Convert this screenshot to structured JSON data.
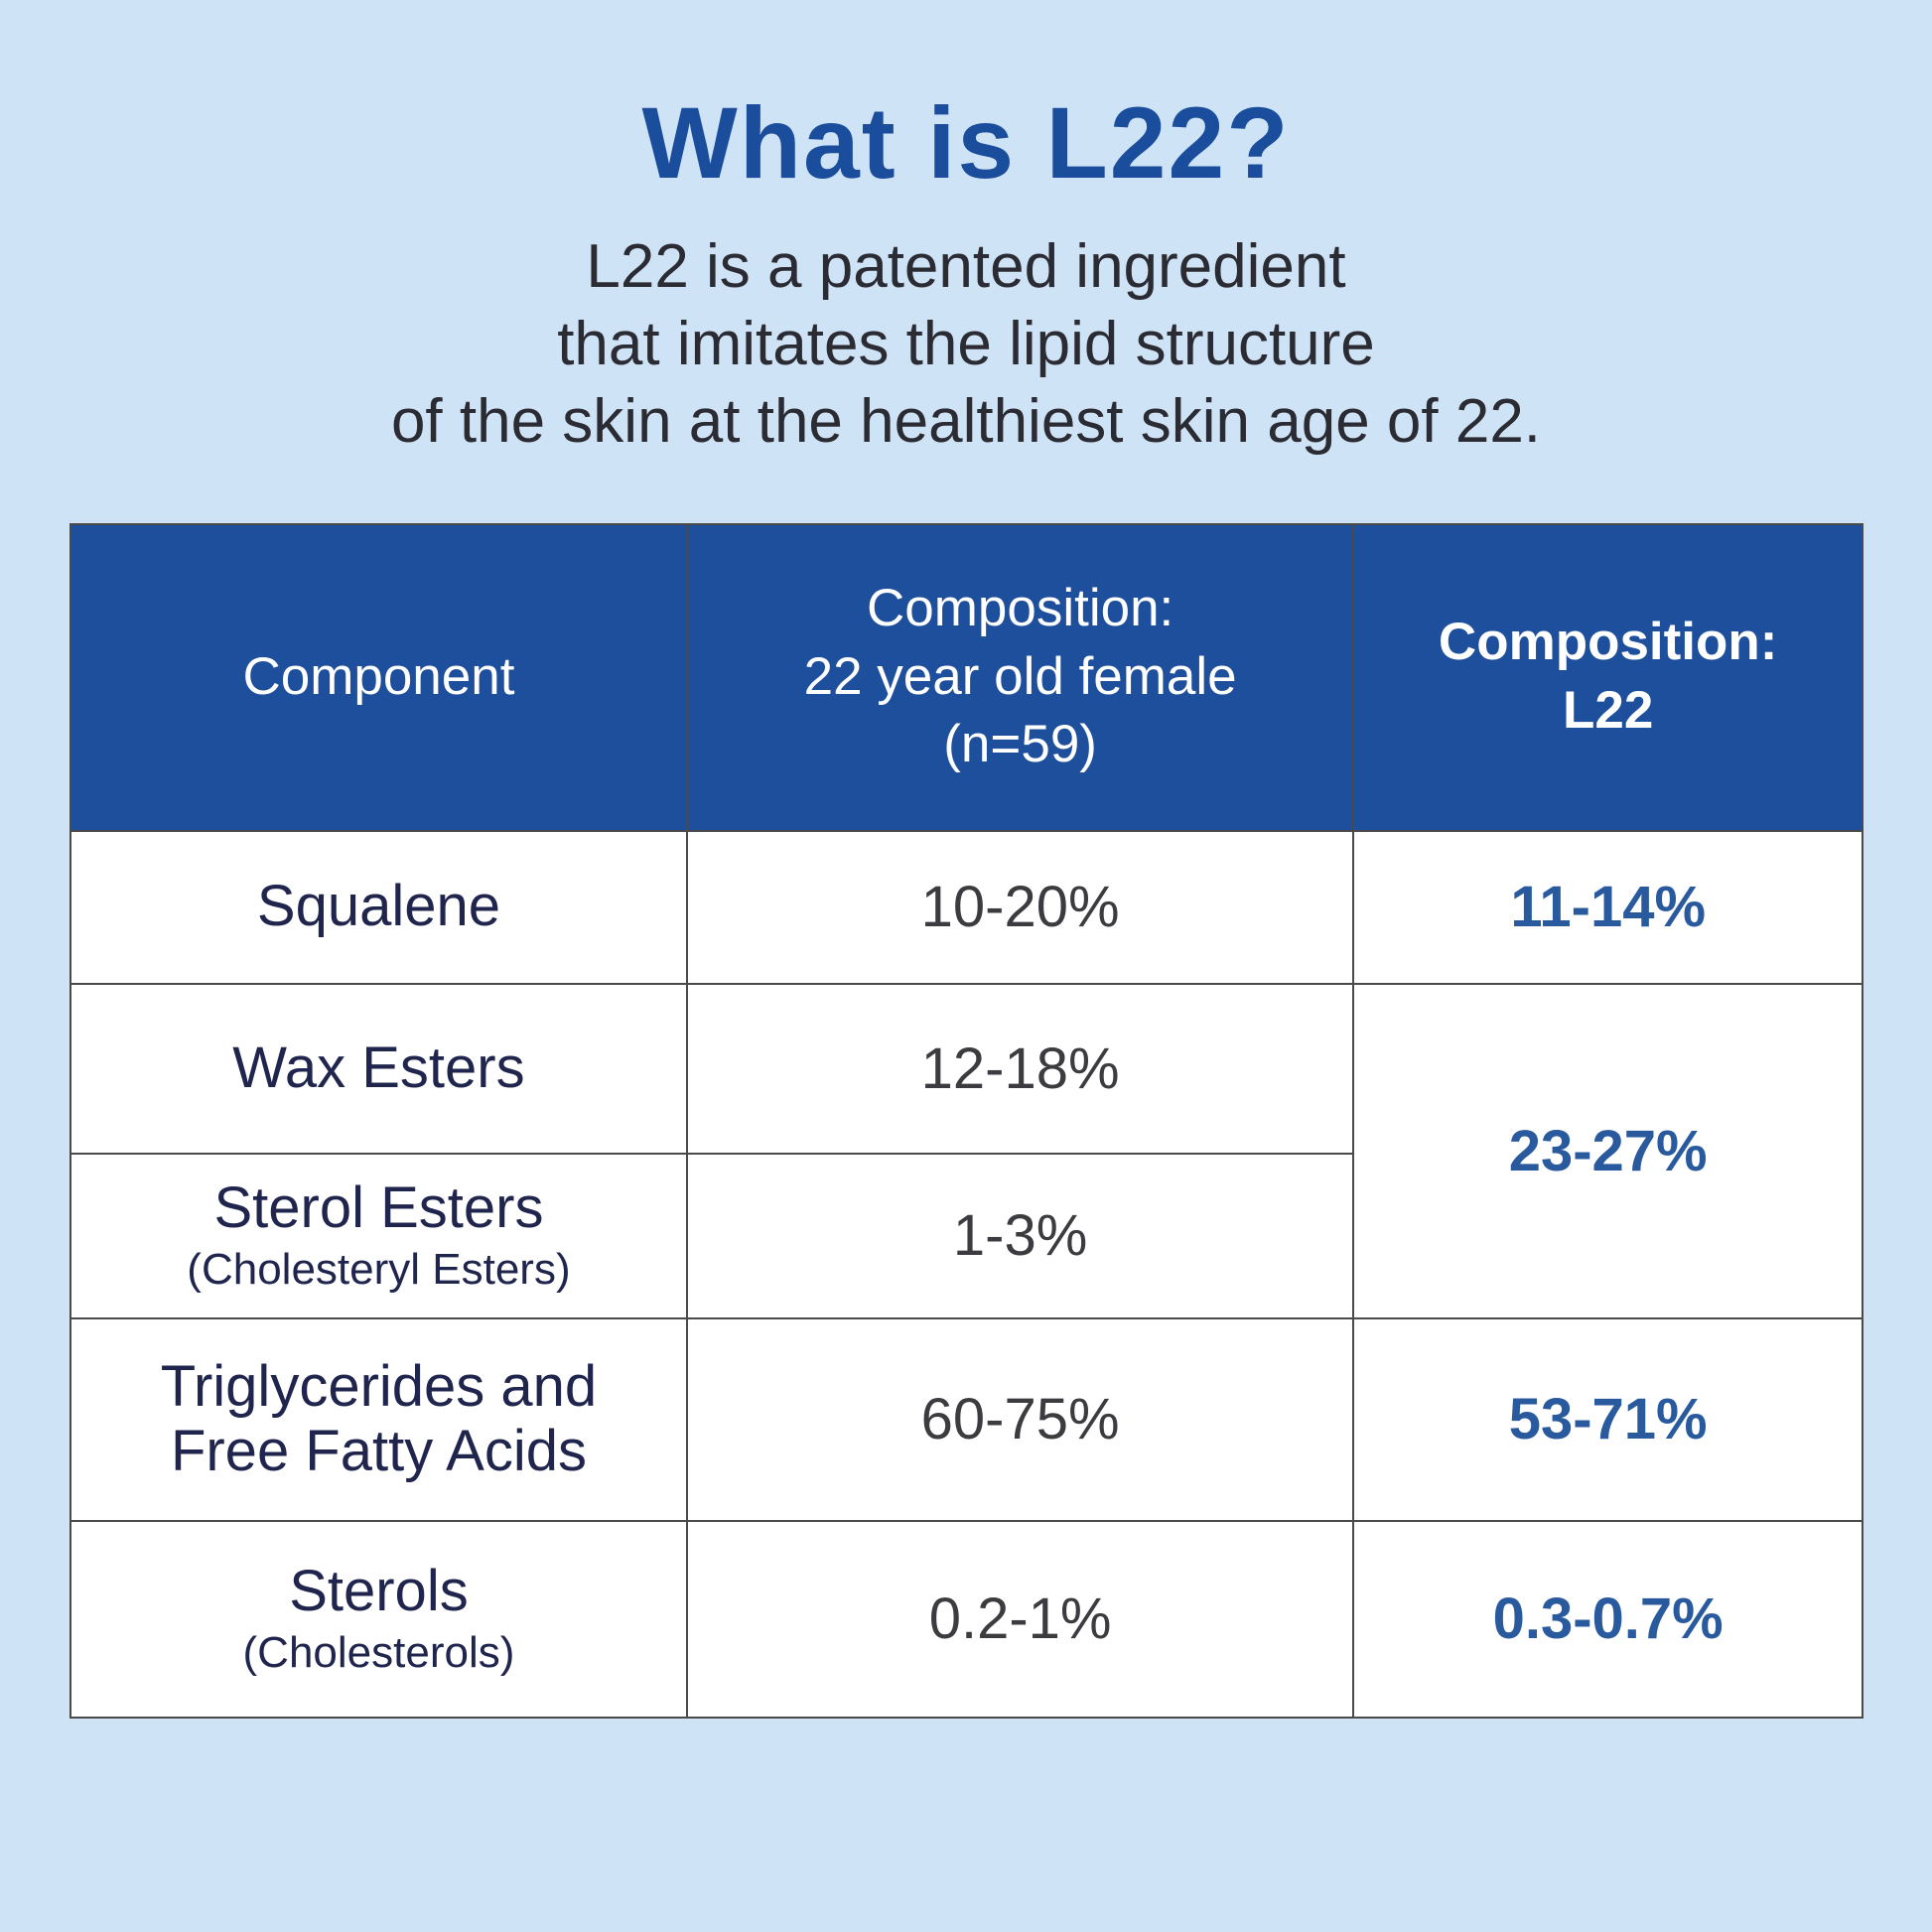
{
  "page": {
    "title": "What is L22?",
    "subtitle": "L22 is a patented ingredient\nthat imitates the lipid structure\nof the skin at the healthiest skin age of 22."
  },
  "colors": {
    "background": "#cfe3f6",
    "title_blue": "#1a4d9c",
    "table_header_bg": "#1e4f9c",
    "table_header_text": "#ffffff",
    "component_navy": "#20254d",
    "value_gray": "#3b3b40",
    "value_accent_blue": "#2a5a9e",
    "border_gray": "#4a4a4a"
  },
  "table": {
    "headers": [
      "Component",
      "Composition:\n22 year old female\n(n=59)",
      "Composition:\nL22"
    ],
    "rows": [
      {
        "component": "Squalene",
        "component_note": "",
        "female_value": "10-20%",
        "l22_value": "11-14%"
      },
      {
        "component": "Wax Esters",
        "component_note": "",
        "female_value": "12-18%",
        "l22_value": "23-27%",
        "l22_rowspan": 2
      },
      {
        "component": "Sterol Esters",
        "component_note": "(Cholesteryl Esters)",
        "female_value": "1-3%",
        "l22_value": null
      },
      {
        "component": "Triglycerides and\nFree Fatty Acids",
        "component_note": "",
        "female_value": "60-75%",
        "l22_value": "53-71%"
      },
      {
        "component": "Sterols",
        "component_note": "(Cholesterols)",
        "female_value": "0.2-1%",
        "l22_value": "0.3-0.7%"
      }
    ]
  }
}
